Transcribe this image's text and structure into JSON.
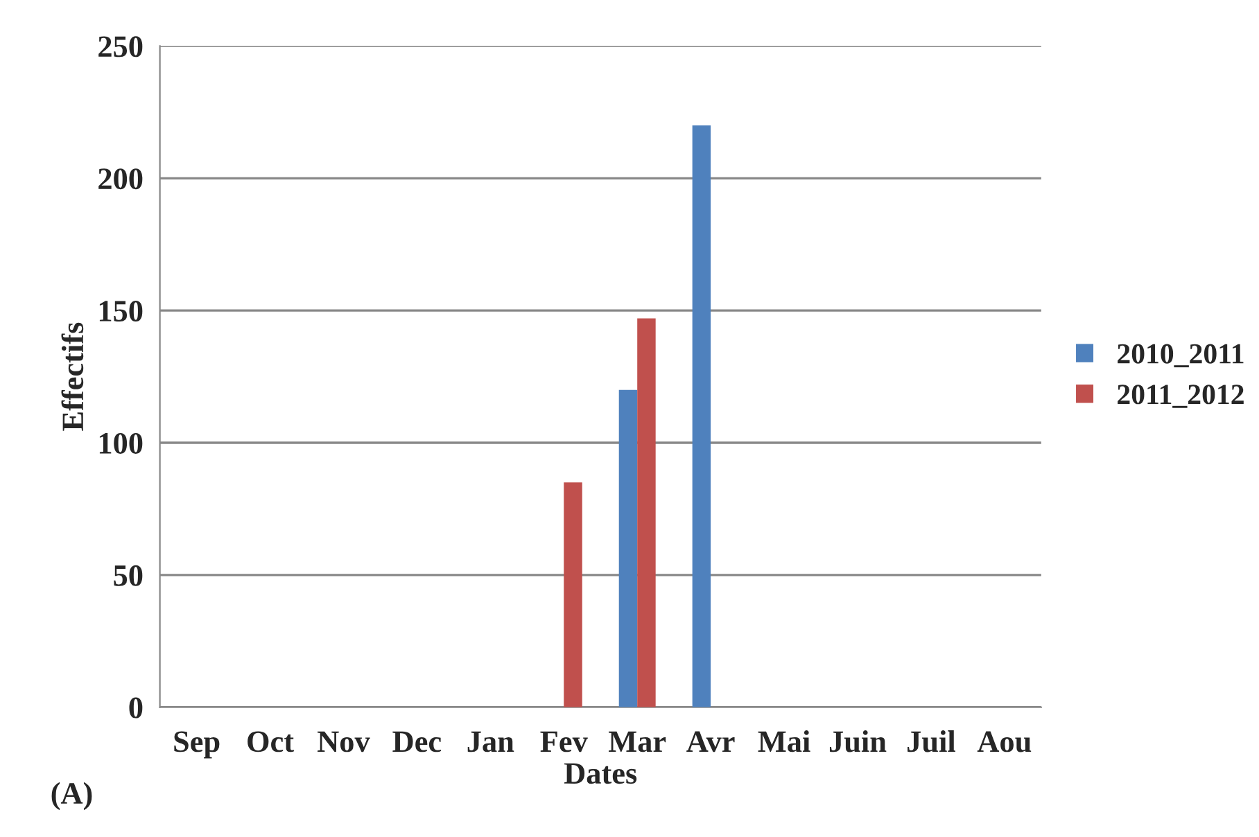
{
  "chart_data": {
    "type": "bar",
    "xlabel": "Dates",
    "ylabel": "Effectifs",
    "categories": [
      "Sep",
      "Oct",
      "Nov",
      "Dec",
      "Jan",
      "Fev",
      "Mar",
      "Avr",
      "Mai",
      "Juin",
      "Juil",
      "Aou"
    ],
    "series": [
      {
        "name": "2010_2011",
        "color": "#4f81bd",
        "values": [
          0,
          0,
          0,
          0,
          0,
          0,
          120,
          220,
          0,
          0,
          0,
          0
        ]
      },
      {
        "name": "2011_2012",
        "color": "#c0504d",
        "values": [
          0,
          0,
          0,
          0,
          0,
          85,
          147,
          0,
          0,
          0,
          0,
          0
        ]
      }
    ],
    "ylim": [
      0,
      250
    ],
    "yticks": [
      0,
      50,
      100,
      150,
      200,
      250
    ],
    "grid": "y",
    "legend": "right",
    "annotations": [
      "(A)"
    ]
  }
}
